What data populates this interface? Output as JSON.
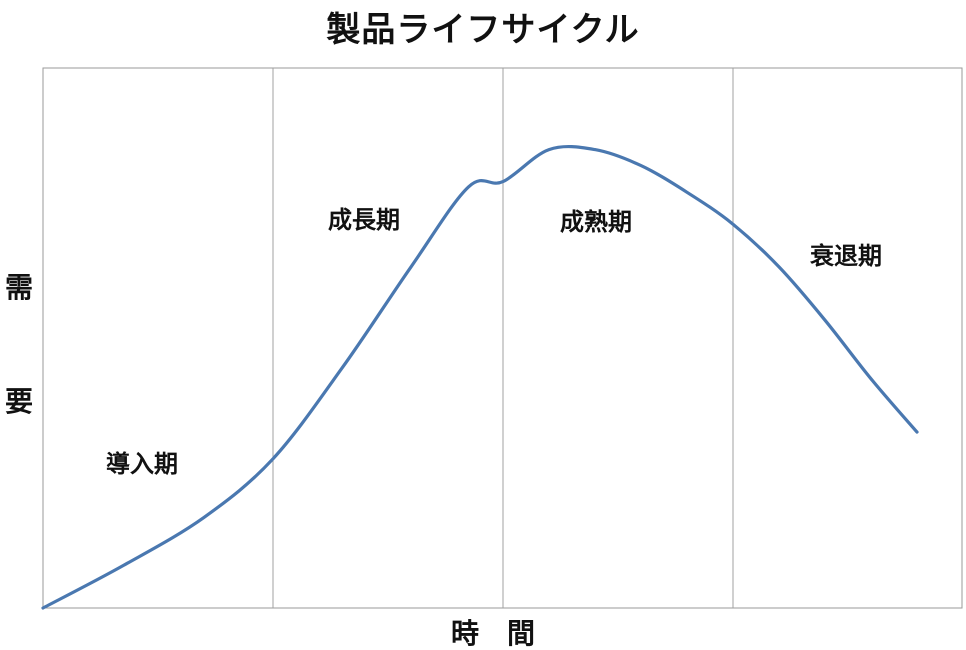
{
  "chart_data": {
    "type": "line",
    "title": "製品ライフサイクル",
    "xlabel": "時　間",
    "ylabel": [
      "需",
      "要"
    ],
    "axis_ticks": "none",
    "grid": "vertical phase dividers",
    "phases": [
      {
        "label": "導入期",
        "x_range": [
          0,
          1
        ]
      },
      {
        "label": "成長期",
        "x_range": [
          1,
          2
        ]
      },
      {
        "label": "成熟期",
        "x_range": [
          2,
          3
        ]
      },
      {
        "label": "衰退期",
        "x_range": [
          3,
          3.8
        ]
      }
    ],
    "xlim": [
      0,
      4
    ],
    "ylim": [
      0,
      1
    ],
    "series": [
      {
        "color": "#4a78b0",
        "x": [
          0,
          0.35,
          0.7,
          1.0,
          1.3,
          1.6,
          1.85,
          2.0,
          2.2,
          2.4,
          2.6,
          2.8,
          3.0,
          3.2,
          3.4,
          3.6,
          3.8
        ],
        "y": [
          0.0,
          0.08,
          0.17,
          0.28,
          0.45,
          0.64,
          0.79,
          0.8,
          0.86,
          0.86,
          0.83,
          0.78,
          0.72,
          0.64,
          0.54,
          0.43,
          0.33
        ]
      }
    ],
    "divider_color": "#a0a0a0",
    "frame_color": "#9a9a9a"
  }
}
